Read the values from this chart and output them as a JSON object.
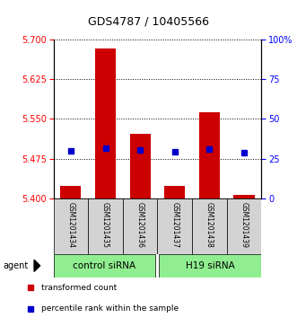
{
  "title": "GDS4787 / 10405566",
  "samples": [
    "GSM1201434",
    "GSM1201435",
    "GSM1201436",
    "GSM1201437",
    "GSM1201438",
    "GSM1201439"
  ],
  "bar_tops": [
    5.425,
    5.682,
    5.522,
    5.425,
    5.562,
    5.408
  ],
  "bar_base": 5.4,
  "percentile_values": [
    5.49,
    5.495,
    5.492,
    5.489,
    5.493,
    5.487
  ],
  "ylim_left": [
    5.4,
    5.7
  ],
  "ylim_right": [
    0,
    100
  ],
  "yticks_left": [
    5.4,
    5.475,
    5.55,
    5.625,
    5.7
  ],
  "yticks_right": [
    0,
    25,
    50,
    75,
    100
  ],
  "bar_color": "#cc0000",
  "square_color": "#0000cc",
  "group1_label": "control siRNA",
  "group2_label": "H19 siRNA",
  "group_color": "#90ee90",
  "agent_label": "agent",
  "legend_bar_label": "transformed count",
  "legend_sq_label": "percentile rank within the sample",
  "title_color": "#000000",
  "bar_width": 0.6
}
